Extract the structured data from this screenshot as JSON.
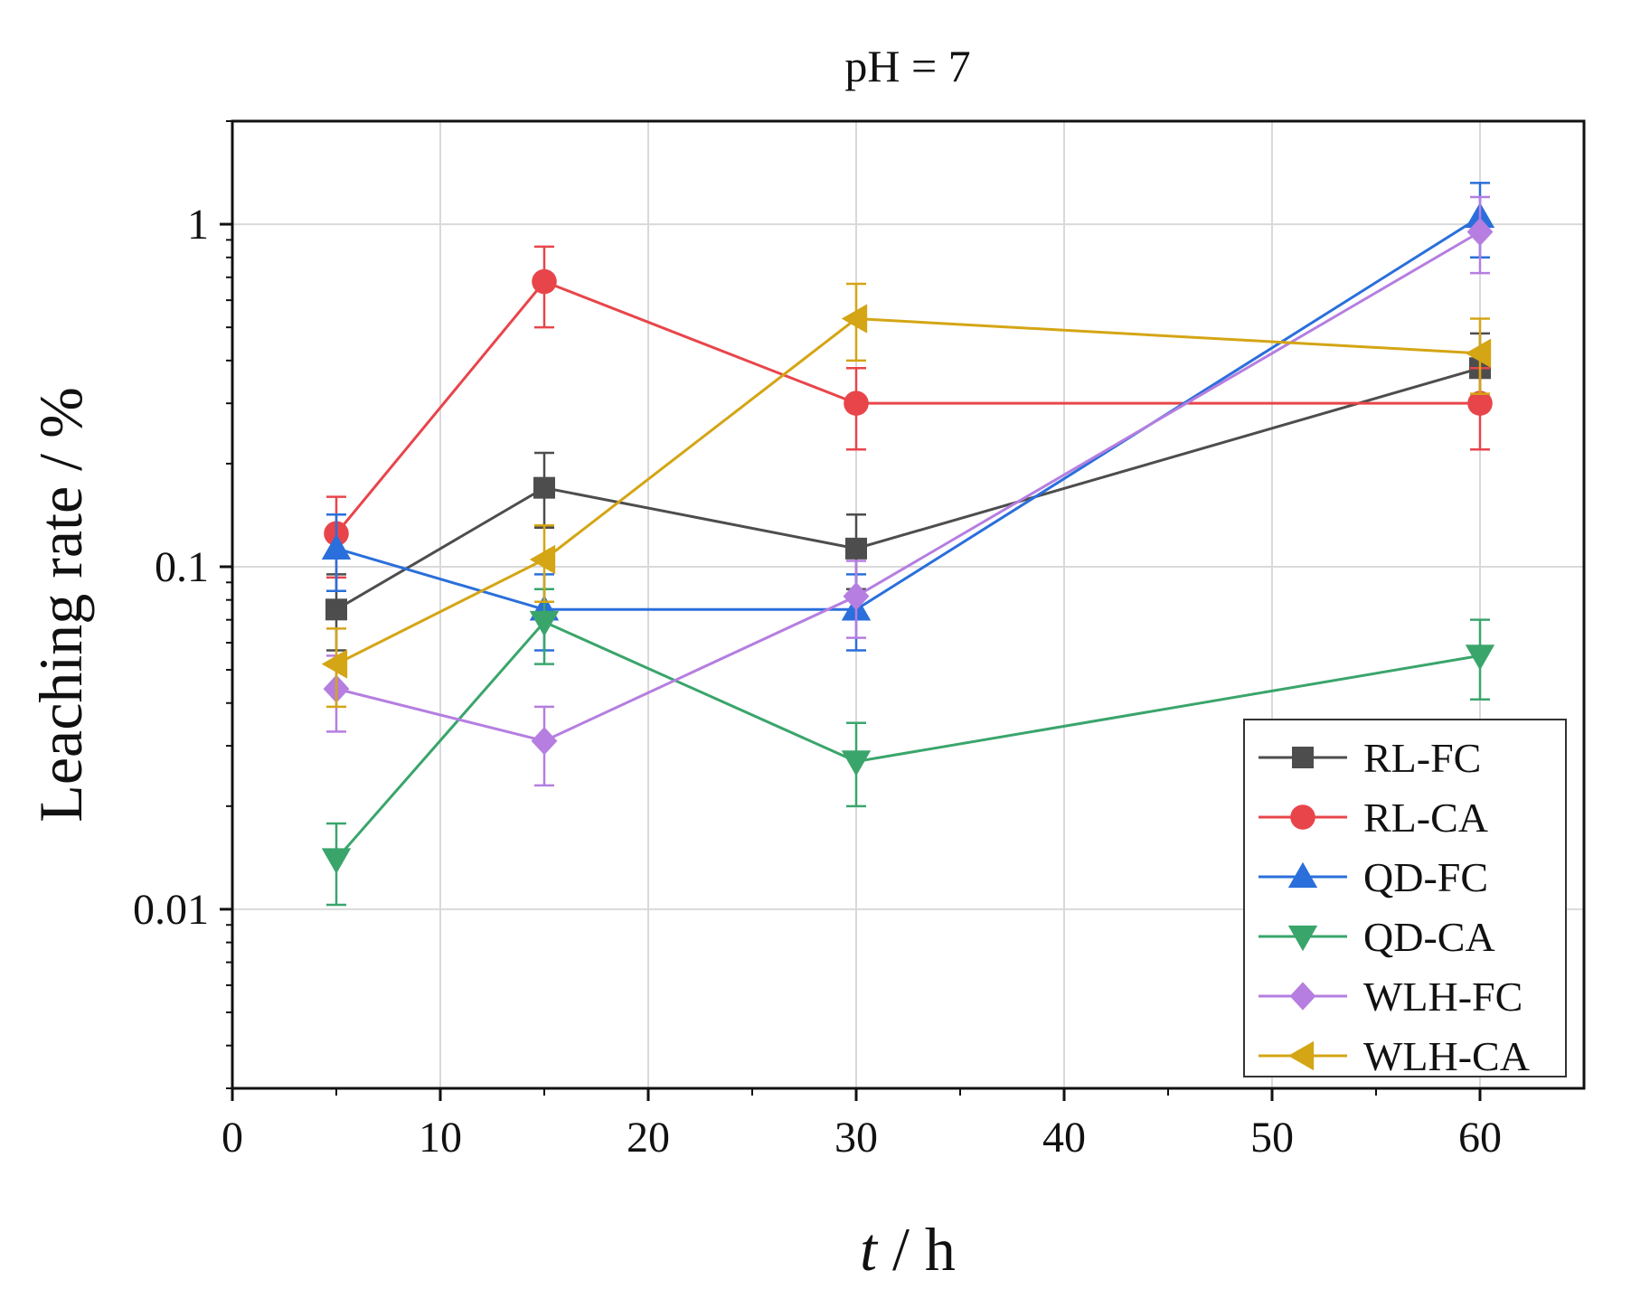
{
  "chart_data": {
    "type": "line",
    "title": "pH = 7",
    "xlabel": {
      "italic": "t",
      "rest": " / h"
    },
    "ylabel": "Leaching rate / %",
    "x_scale": "linear",
    "y_scale": "log",
    "xlim": [
      0,
      65
    ],
    "ylim": [
      0.003,
      2
    ],
    "x_ticks": [
      0,
      10,
      20,
      30,
      40,
      50,
      60
    ],
    "x_tick_labels": [
      "0",
      "10",
      "20",
      "30",
      "40",
      "50",
      "60"
    ],
    "y_ticks": [
      0.01,
      0.1,
      1
    ],
    "y_tick_labels": [
      "0.01",
      "0.1",
      "1"
    ],
    "grid": true,
    "legend_position": "bottom-right",
    "x": [
      5,
      15,
      30,
      60
    ],
    "series": [
      {
        "name": "RL-FC",
        "color": "#4d4d4d",
        "marker": "square",
        "values": [
          0.075,
          0.17,
          0.113,
          0.38
        ],
        "err_low": [
          0.057,
          0.13,
          0.086,
          0.29
        ],
        "err_high": [
          0.095,
          0.215,
          0.142,
          0.48
        ]
      },
      {
        "name": "RL-CA",
        "color": "#e8454a",
        "marker": "circle",
        "values": [
          0.125,
          0.68,
          0.3,
          0.3
        ],
        "err_low": [
          0.093,
          0.5,
          0.22,
          0.22
        ],
        "err_high": [
          0.16,
          0.86,
          0.38,
          0.38
        ]
      },
      {
        "name": "QD-FC",
        "color": "#2a6fdb",
        "marker": "triangle-up",
        "values": [
          0.113,
          0.075,
          0.075,
          1.05
        ],
        "err_low": [
          0.085,
          0.057,
          0.057,
          0.8
        ],
        "err_high": [
          0.142,
          0.095,
          0.095,
          1.32
        ]
      },
      {
        "name": "QD-CA",
        "color": "#3aa56b",
        "marker": "triangle-down",
        "values": [
          0.014,
          0.069,
          0.027,
          0.055
        ],
        "err_low": [
          0.0103,
          0.052,
          0.02,
          0.041
        ],
        "err_high": [
          0.0178,
          0.086,
          0.035,
          0.07
        ]
      },
      {
        "name": "WLH-FC",
        "color": "#b57ee0",
        "marker": "diamond",
        "values": [
          0.044,
          0.031,
          0.082,
          0.95
        ],
        "err_low": [
          0.033,
          0.023,
          0.062,
          0.72
        ],
        "err_high": [
          0.055,
          0.039,
          0.104,
          1.2
        ]
      },
      {
        "name": "WLH-CA",
        "color": "#d4a514",
        "marker": "triangle-left",
        "values": [
          0.052,
          0.105,
          0.53,
          0.42
        ],
        "err_low": [
          0.039,
          0.079,
          0.4,
          0.32
        ],
        "err_high": [
          0.066,
          0.132,
          0.67,
          0.53
        ]
      }
    ]
  }
}
